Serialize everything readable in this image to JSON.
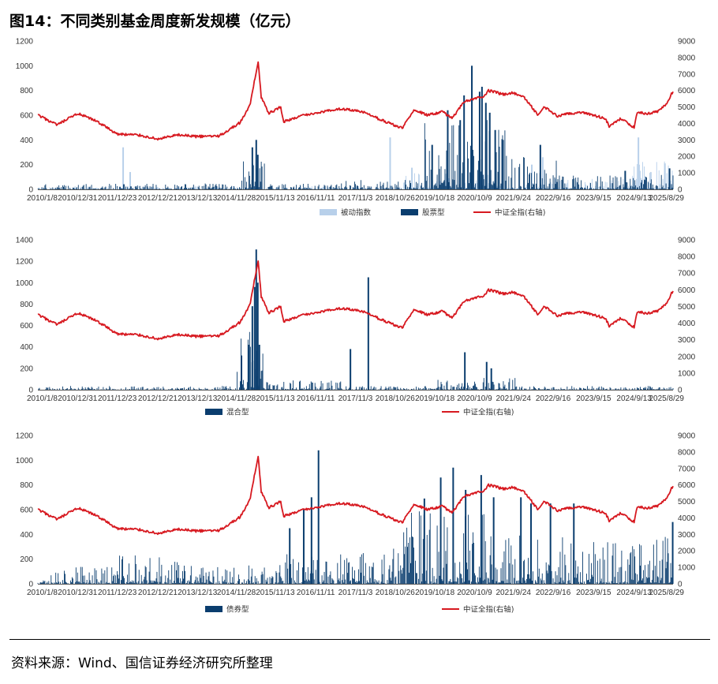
{
  "title": "图14：不同类别基金周度新发规模（亿元）",
  "source": "资料来源：Wind、国信证券经济研究所整理",
  "colors": {
    "passive": "#b8d0ea",
    "equity": "#0a3d6e",
    "hybrid": "#0a3d6e",
    "bond": "#0a3d6e",
    "csi_all": "#d71920"
  },
  "csi_all_index": {
    "x": [
      "2010-01-08",
      "2010-06-30",
      "2010-12-31",
      "2011-06-30",
      "2011-12-23",
      "2012-06-30",
      "2012-12-21",
      "2013-06-30",
      "2013-12-13",
      "2014-06-30",
      "2014-12-31",
      "2015-03-31",
      "2015-06-12",
      "2015-07-10",
      "2015-09-15",
      "2015-12-31",
      "2016-01-29",
      "2016-06-30",
      "2016-12-31",
      "2017-06-30",
      "2017-12-31",
      "2018-06-30",
      "2018-12-28",
      "2019-04-12",
      "2019-08-09",
      "2019-12-31",
      "2020-03-20",
      "2020-07-10",
      "2020-12-31",
      "2021-02-12",
      "2021-06-30",
      "2021-09-24",
      "2021-12-31",
      "2022-04-29",
      "2022-07-01",
      "2022-10-28",
      "2022-12-30",
      "2023-05-31",
      "2023-12-31",
      "2024-02-05",
      "2024-05-20",
      "2024-09-13",
      "2024-10-08",
      "2024-12-31",
      "2025-04-08",
      "2025-06-30",
      "2025-08-29"
    ],
    "y": [
      4500,
      3900,
      4600,
      4100,
      3350,
      3300,
      3050,
      3300,
      3200,
      3250,
      4050,
      5100,
      7800,
      5600,
      4600,
      5000,
      4100,
      4450,
      4700,
      4900,
      4700,
      4200,
      3700,
      4850,
      4500,
      4700,
      4300,
      5350,
      5650,
      6000,
      5750,
      5850,
      5550,
      4550,
      5000,
      4400,
      4550,
      4700,
      4300,
      3800,
      4300,
      3750,
      4700,
      4600,
      4700,
      5200,
      5950
    ],
    "ylim": [
      0,
      9000
    ],
    "yticks": [
      0,
      1000,
      2000,
      3000,
      4000,
      5000,
      6000,
      7000,
      8000,
      9000
    ]
  },
  "chart_data": [
    {
      "type": "bar",
      "ylim": [
        0,
        1200
      ],
      "yticks": [
        0,
        200,
        400,
        600,
        800,
        1000,
        1200
      ],
      "xticks": [
        "2010/1/8",
        "2010/12/31",
        "2011/12/23",
        "2012/12/21",
        "2013/12/13",
        "2014/11/28",
        "2015/11/13",
        "2016/11/11",
        "2017/11/3",
        "2018/10/26",
        "2019/10/18",
        "2020/10/9",
        "2021/9/24",
        "2022/9/16",
        "2023/9/15",
        "2024/9/13",
        "2025/8/29"
      ],
      "legend": [
        "被动指数",
        "股票型",
        "中证全指(右轴)"
      ],
      "secondary_y": "中证全指(右轴)",
      "series": [
        {
          "name": "被动指数",
          "x": [
            "2012-02-10",
            "2012-04-13",
            "2018-09-07",
            "2019-03-22",
            "2020-07-03",
            "2022-03-04",
            "2022-06-10",
            "2024-10-18",
            "2025-06-13"
          ],
          "values": [
            340,
            140,
            420,
            175,
            180,
            200,
            260,
            420,
            210
          ]
        },
        {
          "name": "股票型",
          "x": [
            "2015-04-17",
            "2015-05-22",
            "2015-06-05",
            "2019-09-20",
            "2020-02-07",
            "2020-05-29",
            "2020-07-03",
            "2020-09-11",
            "2020-11-20",
            "2020-12-11",
            "2021-01-15",
            "2021-02-19",
            "2021-04-09",
            "2021-06-18",
            "2022-05-20",
            "2024-06-21",
            "2025-07-25"
          ],
          "values": [
            340,
            400,
            280,
            360,
            640,
            560,
            760,
            1000,
            790,
            830,
            700,
            620,
            480,
            400,
            360,
            150,
            170
          ]
        }
      ]
    },
    {
      "type": "bar",
      "ylim": [
        0,
        1400
      ],
      "yticks": [
        0,
        200,
        400,
        600,
        800,
        1000,
        1200,
        1400
      ],
      "xticks": [
        "2010/1/8",
        "2010/12/31",
        "2011/12/23",
        "2012/12/21",
        "2013/12/13",
        "2014/11/28",
        "2015/11/13",
        "2016/11/11",
        "2017/11/3",
        "2018/10/26",
        "2019/10/18",
        "2020/10/9",
        "2021/9/24",
        "2022/9/16",
        "2023/9/15",
        "2024/9/13",
        "2025/8/29"
      ],
      "legend": [
        "混合型",
        "中证全指(右轴)"
      ],
      "secondary_y": "中证全指(右轴)",
      "series": [
        {
          "name": "混合型",
          "x": [
            "2015-01-09",
            "2015-03-13",
            "2015-04-17",
            "2015-05-08",
            "2015-05-22",
            "2015-06-05",
            "2015-06-19",
            "2017-09-15",
            "2018-02-23",
            "2020-07-10",
            "2021-01-22",
            "2021-03-05"
          ],
          "values": [
            320,
            420,
            780,
            960,
            1310,
            1000,
            420,
            380,
            1050,
            350,
            260,
            200
          ]
        }
      ]
    },
    {
      "type": "bar",
      "ylim": [
        0,
        1200
      ],
      "yticks": [
        0,
        200,
        400,
        600,
        800,
        1000,
        1200
      ],
      "xticks": [
        "2010/1/8",
        "2010/12/31",
        "2011/12/23",
        "2012/12/21",
        "2013/12/13",
        "2014/11/28",
        "2015/11/13",
        "2016/11/11",
        "2017/11/3",
        "2018/10/26",
        "2019/10/18",
        "2020/10/9",
        "2021/9/24",
        "2022/9/16",
        "2023/9/15",
        "2024/9/13",
        "2025/8/29"
      ],
      "legend": [
        "债券型",
        "中证全指(右轴)"
      ],
      "secondary_y": "中证全指(右轴)",
      "series": [
        {
          "name": "债券型",
          "x": [
            "2016-03-18",
            "2016-07-22",
            "2016-09-30",
            "2016-12-02",
            "2019-07-12",
            "2019-12-06",
            "2020-03-27",
            "2020-07-17",
            "2020-12-04",
            "2021-03-26",
            "2021-11-26",
            "2022-02-25",
            "2022-08-19",
            "2023-03-17",
            "2025-08-22"
          ],
          "values": [
            450,
            600,
            700,
            1080,
            690,
            860,
            940,
            760,
            880,
            700,
            700,
            650,
            650,
            650,
            500
          ]
        }
      ]
    }
  ]
}
